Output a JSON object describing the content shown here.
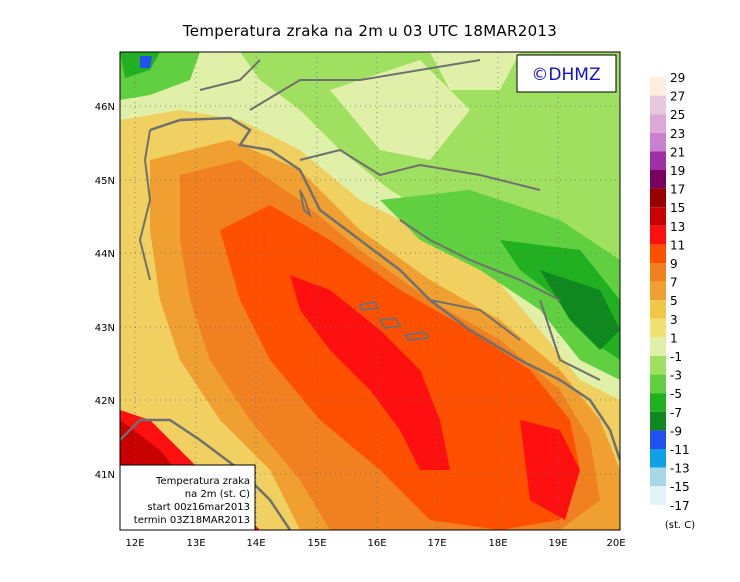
{
  "title": "Temperatura zraka na 2m u 03 UTC 18MAR2013",
  "logo": "©DHMZ",
  "info_box": {
    "line1": "Temperatura zraka",
    "line2": "na 2m (st. C)",
    "line3": "start 00z16mar2013",
    "line4": "termin 03Z18MAR2013"
  },
  "lat_labels": [
    "46N",
    "45N",
    "44N",
    "43N",
    "42N",
    "41N"
  ],
  "lon_labels": [
    "12E",
    "13E",
    "14E",
    "15E",
    "16E",
    "17E",
    "18E",
    "19E",
    "20E"
  ],
  "legend_unit": "(st. C)",
  "legend": [
    {
      "label": "29",
      "color": "#fdeee0"
    },
    {
      "label": "27",
      "color": "#e8c8dc"
    },
    {
      "label": "25",
      "color": "#dca8d8"
    },
    {
      "label": "23",
      "color": "#c880d0"
    },
    {
      "label": "21",
      "color": "#a030a8"
    },
    {
      "label": "19",
      "color": "#7a0060"
    },
    {
      "label": "17",
      "color": "#980000"
    },
    {
      "label": "15",
      "color": "#c80000"
    },
    {
      "label": "13",
      "color": "#ff1010"
    },
    {
      "label": "11",
      "color": "#ff5000"
    },
    {
      "label": "9",
      "color": "#f08020"
    },
    {
      "label": "7",
      "color": "#f0a030"
    },
    {
      "label": "5",
      "color": "#f0c848"
    },
    {
      "label": "3",
      "color": "#f0e070"
    },
    {
      "label": "1",
      "color": "#e0f0a8"
    },
    {
      "label": "-1",
      "color": "#a0e060"
    },
    {
      "label": "-3",
      "color": "#60d040"
    },
    {
      "label": "-5",
      "color": "#20b020"
    },
    {
      "label": "-7",
      "color": "#108820"
    },
    {
      "label": "-9",
      "color": "#2050f0"
    },
    {
      "label": "-11",
      "color": "#10a0e8"
    },
    {
      "label": "-13",
      "color": "#a8d8e8"
    },
    {
      "label": "-15",
      "color": "#e0f4f8"
    },
    {
      "label": "-17",
      "color": ""
    }
  ]
}
